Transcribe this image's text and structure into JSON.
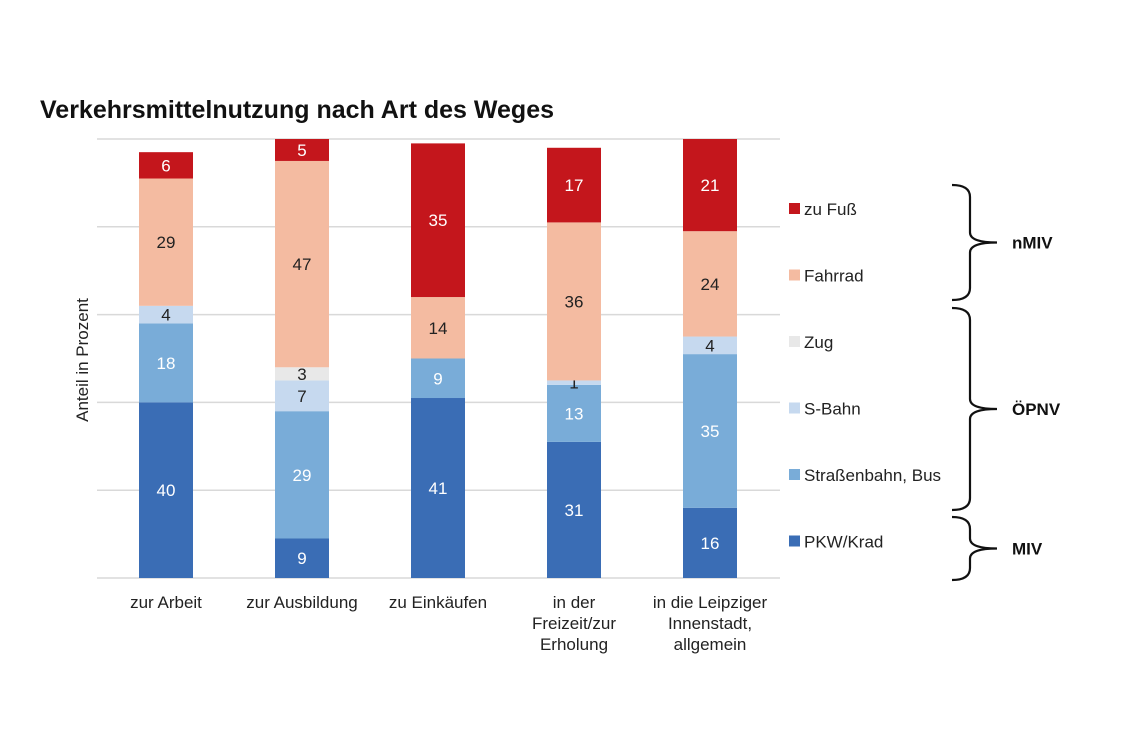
{
  "chart_data": {
    "type": "bar",
    "stacked": true,
    "title": "Verkehrsmittelnutzung nach Art des Weges",
    "ylabel": "Anteil in Prozent",
    "xlabel": "",
    "ylim": [
      0,
      100
    ],
    "categories": [
      [
        "zur Arbeit"
      ],
      [
        "zur Ausbildung"
      ],
      [
        "zu Einkäufen"
      ],
      [
        "in der",
        "Freizeit/zur",
        "Erholung"
      ],
      [
        "in die Leipziger",
        "Innenstadt,",
        "allgemein"
      ]
    ],
    "series": [
      {
        "name": "PKW/Krad",
        "color": "#3a6db5",
        "label_color": "#ffffff",
        "values": [
          40,
          9,
          41,
          31,
          16
        ]
      },
      {
        "name": "Straßenbahn, Bus",
        "color": "#79acd8",
        "label_color": "#ffffff",
        "values": [
          18,
          29,
          9,
          13,
          35
        ]
      },
      {
        "name": "S-Bahn",
        "color": "#c6d9ef",
        "label_color": "#222222",
        "values": [
          4,
          7,
          0,
          1,
          4
        ]
      },
      {
        "name": "Zug",
        "color": "#e8e8e8",
        "label_color": "#222222",
        "values": [
          0,
          3,
          0,
          0,
          0
        ]
      },
      {
        "name": "Fahrrad",
        "color": "#f4bba1",
        "label_color": "#222222",
        "values": [
          29,
          47,
          14,
          36,
          24
        ]
      },
      {
        "name": "zu Fuß",
        "color": "#c4161c",
        "label_color": "#ffffff",
        "values": [
          6,
          5,
          35,
          17,
          21
        ]
      }
    ],
    "legend_order": [
      "zu Fuß",
      "Fahrrad",
      "Zug",
      "S-Bahn",
      "Straßenbahn, Bus",
      "PKW/Krad"
    ],
    "legend_position": "right",
    "groups": [
      {
        "name": "nMIV",
        "members": [
          "zu Fuß",
          "Fahrrad"
        ]
      },
      {
        "name": "ÖPNV",
        "members": [
          "Zug",
          "S-Bahn",
          "Straßenbahn, Bus"
        ]
      },
      {
        "name": "MIV",
        "members": [
          "PKW/Krad"
        ]
      }
    ],
    "grid": true
  }
}
